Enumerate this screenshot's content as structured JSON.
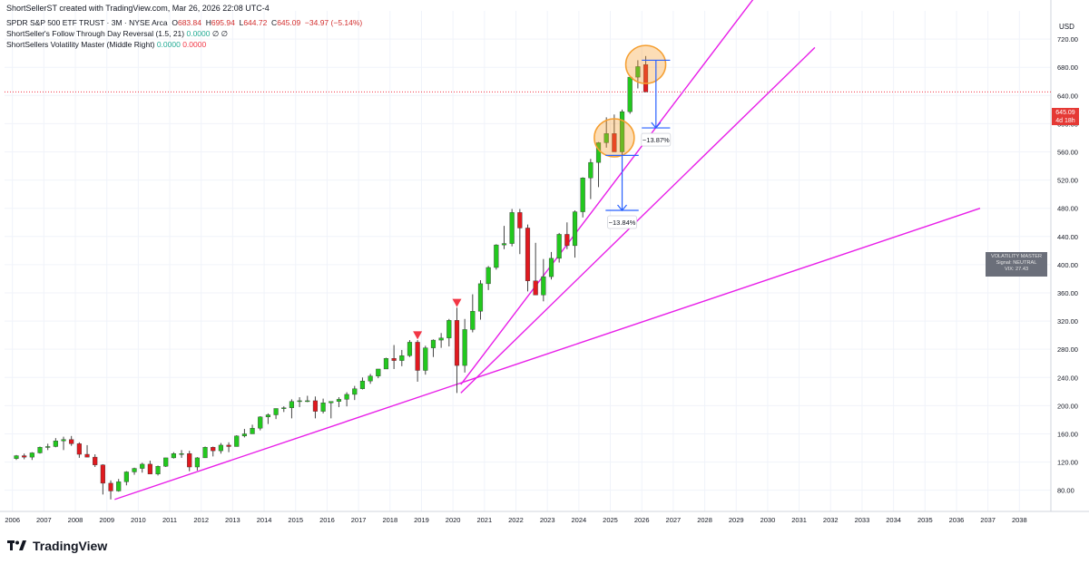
{
  "header": {
    "credit": "ShortSellerST created with TradingView.com, Mar 26, 2026 22:08 UTC-4",
    "symbol": "SPDR S&P 500 ETF TRUST · 3M · NYSE Arca",
    "ohlc": {
      "o_label": "O",
      "o": "683.84",
      "h_label": "H",
      "h": "695.94",
      "l_label": "L",
      "l": "644.72",
      "c_label": "C",
      "c": "645.09",
      "change": "−34.97 (−5.14%)"
    },
    "indicator1": {
      "name": "ShortSeller's Follow Through Day Reversal (1.5, 21)",
      "v1": "0.0000",
      "v2": "∅",
      "v3": "∅"
    },
    "indicator2": {
      "name": "ShortSellers Volatility Master (Middle Right)",
      "v1": "0.0000",
      "v2": "0.0000"
    }
  },
  "price_axis": {
    "currency": "USD",
    "last_price": "645.09",
    "countdown": "4d 18h"
  },
  "volatility_box": {
    "title": "VOLATILITY MASTER",
    "signal": "Signal: NEUTRAL",
    "vix": "VIX: 27.43"
  },
  "footer": {
    "brand": "TradingView"
  },
  "colors": {
    "up": "#22c81e",
    "down": "#e0191f",
    "trendline": "#e81ee8",
    "measure": "#2962ff",
    "circle": "#f59e2f"
  },
  "chart_data": {
    "type": "candlestick",
    "title": "SPDR S&P 500 ETF TRUST · 3M · NYSE Arca",
    "timeframe": "3M",
    "ylabel": "USD",
    "ylim": [
      50,
      760
    ],
    "xlim": [
      2005.75,
      2039.0
    ],
    "yticks": [
      80,
      120,
      160,
      200,
      240,
      280,
      320,
      360,
      400,
      440,
      480,
      520,
      560,
      600,
      640,
      680,
      720
    ],
    "xticks": [
      "2006",
      "2007",
      "2008",
      "2009",
      "2010",
      "2011",
      "2012",
      "2013",
      "2014",
      "2015",
      "2016",
      "2017",
      "2018",
      "2019",
      "2020",
      "2021",
      "2022",
      "2023",
      "2024",
      "2025",
      "2026",
      "2027",
      "2028",
      "2029",
      "2030",
      "2031",
      "2032",
      "2033",
      "2034",
      "2035",
      "2036",
      "2037",
      "2038"
    ],
    "grid": true,
    "candles": [
      {
        "t": 2006.0,
        "o": 125,
        "h": 130,
        "l": 123,
        "c": 129
      },
      {
        "t": 2006.25,
        "o": 129,
        "h": 132,
        "l": 124,
        "c": 127
      },
      {
        "t": 2006.5,
        "o": 127,
        "h": 134,
        "l": 123,
        "c": 133
      },
      {
        "t": 2006.75,
        "o": 133,
        "h": 142,
        "l": 132,
        "c": 141
      },
      {
        "t": 2007.0,
        "o": 141,
        "h": 146,
        "l": 137,
        "c": 142
      },
      {
        "t": 2007.25,
        "o": 142,
        "h": 154,
        "l": 141,
        "c": 150
      },
      {
        "t": 2007.5,
        "o": 150,
        "h": 156,
        "l": 137,
        "c": 152
      },
      {
        "t": 2007.75,
        "o": 152,
        "h": 157,
        "l": 143,
        "c": 146
      },
      {
        "t": 2008.0,
        "o": 146,
        "h": 148,
        "l": 126,
        "c": 131
      },
      {
        "t": 2008.25,
        "o": 131,
        "h": 144,
        "l": 127,
        "c": 127
      },
      {
        "t": 2008.5,
        "o": 127,
        "h": 131,
        "l": 113,
        "c": 116
      },
      {
        "t": 2008.75,
        "o": 116,
        "h": 117,
        "l": 74,
        "c": 90
      },
      {
        "t": 2009.0,
        "o": 90,
        "h": 94,
        "l": 67,
        "c": 79
      },
      {
        "t": 2009.25,
        "o": 79,
        "h": 96,
        "l": 78,
        "c": 92
      },
      {
        "t": 2009.5,
        "o": 92,
        "h": 107,
        "l": 87,
        "c": 106
      },
      {
        "t": 2009.75,
        "o": 106,
        "h": 112,
        "l": 102,
        "c": 111
      },
      {
        "t": 2010.0,
        "o": 111,
        "h": 119,
        "l": 105,
        "c": 117
      },
      {
        "t": 2010.25,
        "o": 117,
        "h": 122,
        "l": 103,
        "c": 103
      },
      {
        "t": 2010.5,
        "o": 103,
        "h": 115,
        "l": 101,
        "c": 114
      },
      {
        "t": 2010.75,
        "o": 114,
        "h": 126,
        "l": 113,
        "c": 126
      },
      {
        "t": 2011.0,
        "o": 126,
        "h": 134,
        "l": 125,
        "c": 132
      },
      {
        "t": 2011.25,
        "o": 132,
        "h": 137,
        "l": 126,
        "c": 132
      },
      {
        "t": 2011.5,
        "o": 132,
        "h": 136,
        "l": 107,
        "c": 113
      },
      {
        "t": 2011.75,
        "o": 113,
        "h": 127,
        "l": 108,
        "c": 126
      },
      {
        "t": 2012.0,
        "o": 126,
        "h": 142,
        "l": 126,
        "c": 141
      },
      {
        "t": 2012.25,
        "o": 141,
        "h": 142,
        "l": 128,
        "c": 136
      },
      {
        "t": 2012.5,
        "o": 136,
        "h": 147,
        "l": 132,
        "c": 144
      },
      {
        "t": 2012.75,
        "o": 144,
        "h": 148,
        "l": 134,
        "c": 142
      },
      {
        "t": 2013.0,
        "o": 142,
        "h": 158,
        "l": 142,
        "c": 157
      },
      {
        "t": 2013.25,
        "o": 157,
        "h": 167,
        "l": 155,
        "c": 160
      },
      {
        "t": 2013.5,
        "o": 160,
        "h": 173,
        "l": 160,
        "c": 168
      },
      {
        "t": 2013.75,
        "o": 168,
        "h": 185,
        "l": 165,
        "c": 184
      },
      {
        "t": 2014.0,
        "o": 184,
        "h": 189,
        "l": 174,
        "c": 187
      },
      {
        "t": 2014.25,
        "o": 187,
        "h": 196,
        "l": 181,
        "c": 196
      },
      {
        "t": 2014.5,
        "o": 196,
        "h": 199,
        "l": 191,
        "c": 197
      },
      {
        "t": 2014.75,
        "o": 197,
        "h": 209,
        "l": 182,
        "c": 206
      },
      {
        "t": 2015.0,
        "o": 206,
        "h": 212,
        "l": 198,
        "c": 207
      },
      {
        "t": 2015.25,
        "o": 207,
        "h": 214,
        "l": 205,
        "c": 207
      },
      {
        "t": 2015.5,
        "o": 207,
        "h": 213,
        "l": 182,
        "c": 192
      },
      {
        "t": 2015.75,
        "o": 192,
        "h": 210,
        "l": 189,
        "c": 204
      },
      {
        "t": 2016.0,
        "o": 204,
        "h": 206,
        "l": 182,
        "c": 206
      },
      {
        "t": 2016.25,
        "o": 206,
        "h": 212,
        "l": 198,
        "c": 209
      },
      {
        "t": 2016.5,
        "o": 209,
        "h": 219,
        "l": 199,
        "c": 216
      },
      {
        "t": 2016.75,
        "o": 216,
        "h": 228,
        "l": 208,
        "c": 224
      },
      {
        "t": 2017.0,
        "o": 224,
        "h": 240,
        "l": 223,
        "c": 235
      },
      {
        "t": 2017.25,
        "o": 235,
        "h": 245,
        "l": 231,
        "c": 242
      },
      {
        "t": 2017.5,
        "o": 242,
        "h": 251,
        "l": 239,
        "c": 252
      },
      {
        "t": 2017.75,
        "o": 252,
        "h": 268,
        "l": 252,
        "c": 267
      },
      {
        "t": 2018.0,
        "o": 267,
        "h": 286,
        "l": 252,
        "c": 264
      },
      {
        "t": 2018.25,
        "o": 264,
        "h": 279,
        "l": 256,
        "c": 271
      },
      {
        "t": 2018.5,
        "o": 271,
        "h": 293,
        "l": 269,
        "c": 290
      },
      {
        "t": 2018.75,
        "o": 290,
        "h": 293,
        "l": 234,
        "c": 250
      },
      {
        "t": 2019.0,
        "o": 250,
        "h": 285,
        "l": 244,
        "c": 282
      },
      {
        "t": 2019.25,
        "o": 282,
        "h": 294,
        "l": 269,
        "c": 293
      },
      {
        "t": 2019.5,
        "o": 293,
        "h": 303,
        "l": 282,
        "c": 296
      },
      {
        "t": 2019.75,
        "o": 296,
        "h": 323,
        "l": 284,
        "c": 321
      },
      {
        "t": 2020.0,
        "o": 321,
        "h": 339,
        "l": 218,
        "c": 257
      },
      {
        "t": 2020.25,
        "o": 257,
        "h": 323,
        "l": 247,
        "c": 308
      },
      {
        "t": 2020.5,
        "o": 308,
        "h": 358,
        "l": 304,
        "c": 334
      },
      {
        "t": 2020.75,
        "o": 334,
        "h": 378,
        "l": 322,
        "c": 373
      },
      {
        "t": 2021.0,
        "o": 373,
        "h": 398,
        "l": 364,
        "c": 396
      },
      {
        "t": 2021.25,
        "o": 396,
        "h": 429,
        "l": 393,
        "c": 428
      },
      {
        "t": 2021.5,
        "o": 428,
        "h": 455,
        "l": 422,
        "c": 430
      },
      {
        "t": 2021.75,
        "o": 430,
        "h": 479,
        "l": 426,
        "c": 474
      },
      {
        "t": 2022.0,
        "o": 474,
        "h": 479,
        "l": 415,
        "c": 452
      },
      {
        "t": 2022.25,
        "o": 452,
        "h": 457,
        "l": 362,
        "c": 377
      },
      {
        "t": 2022.5,
        "o": 377,
        "h": 431,
        "l": 357,
        "c": 357
      },
      {
        "t": 2022.75,
        "o": 357,
        "h": 408,
        "l": 348,
        "c": 383
      },
      {
        "t": 2023.0,
        "o": 383,
        "h": 418,
        "l": 379,
        "c": 409
      },
      {
        "t": 2023.25,
        "o": 409,
        "h": 445,
        "l": 403,
        "c": 443
      },
      {
        "t": 2023.5,
        "o": 443,
        "h": 460,
        "l": 422,
        "c": 427
      },
      {
        "t": 2023.75,
        "o": 427,
        "h": 477,
        "l": 410,
        "c": 475
      },
      {
        "t": 2024.0,
        "o": 475,
        "h": 524,
        "l": 467,
        "c": 523
      },
      {
        "t": 2024.25,
        "o": 523,
        "h": 550,
        "l": 493,
        "c": 545
      },
      {
        "t": 2024.5,
        "o": 545,
        "h": 574,
        "l": 510,
        "c": 573
      },
      {
        "t": 2024.75,
        "o": 573,
        "h": 609,
        "l": 566,
        "c": 586
      },
      {
        "t": 2025.0,
        "o": 586,
        "h": 613,
        "l": 560,
        "c": 560
      },
      {
        "t": 2025.25,
        "o": 560,
        "h": 620,
        "l": 481,
        "c": 617
      },
      {
        "t": 2025.5,
        "o": 617,
        "h": 666,
        "l": 614,
        "c": 666
      },
      {
        "t": 2025.75,
        "o": 666,
        "h": 690,
        "l": 650,
        "c": 681
      },
      {
        "t": 2026.0,
        "o": 683.84,
        "h": 695.94,
        "l": 644.72,
        "c": 645.09
      }
    ],
    "trendlines": [
      {
        "from": [
          2009.25,
          67
        ],
        "to": [
          2036.75,
          480
        ]
      },
      {
        "from": [
          2020.25,
          218
        ],
        "to": [
          2031.5,
          708
        ]
      },
      {
        "from": [
          2020.25,
          230
        ],
        "to": [
          2029.6,
          780
        ]
      }
    ],
    "signals": [
      {
        "t": 2018.75,
        "price": 299,
        "label": "▼"
      },
      {
        "t": 2020.0,
        "price": 345,
        "label": "▼"
      }
    ],
    "measures": [
      {
        "t_from": 2024.85,
        "t_to": 2025.9,
        "top": 555,
        "bottom": 477,
        "label": "−13.84%"
      },
      {
        "t_from": 2026.0,
        "t_to": 2026.9,
        "top": 690,
        "bottom": 594,
        "label": "−13.87%"
      }
    ],
    "highlights": [
      {
        "t": 2025.0,
        "price": 580
      },
      {
        "t": 2026.0,
        "price": 684
      }
    ],
    "last_price_line": 645.09
  }
}
